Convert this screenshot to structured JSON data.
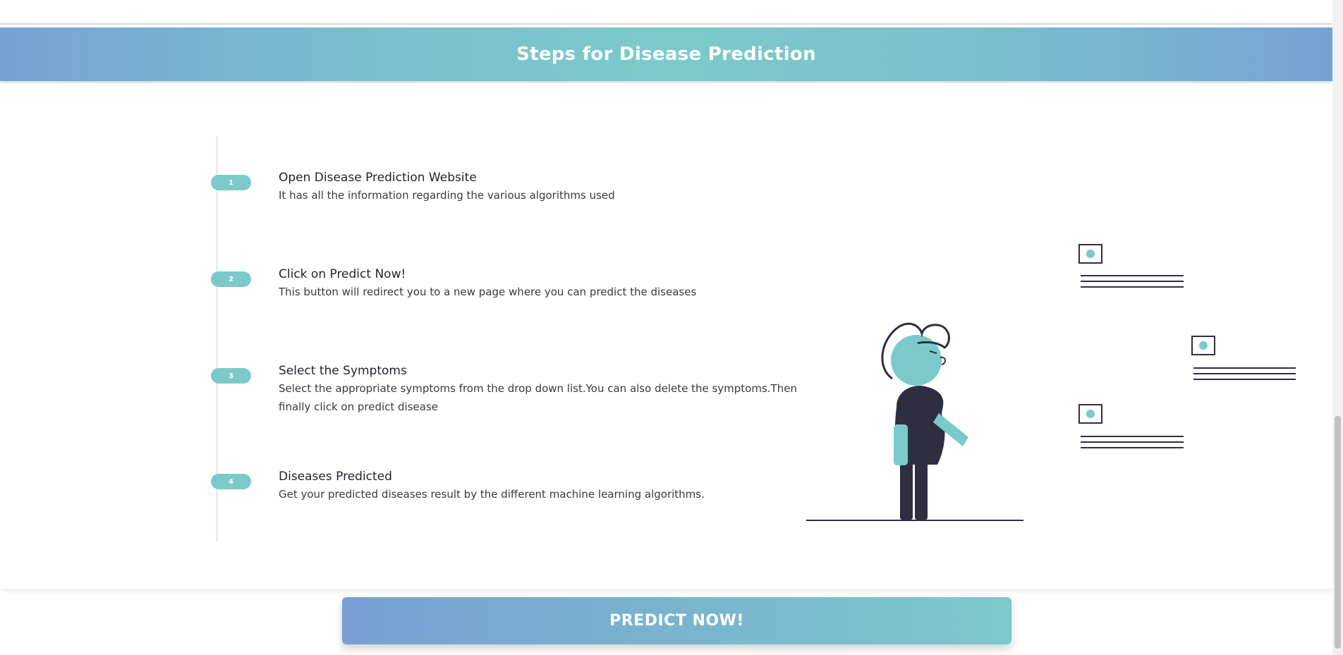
{
  "header": {
    "title": "Steps for Disease Prediction"
  },
  "steps": [
    {
      "number": "1",
      "title": "Open Disease Prediction Website",
      "description": "It has all the information regarding the various algorithms used"
    },
    {
      "number": "2",
      "title": "Click on Predict Now!",
      "description": "This button will redirect you to a new page where you can predict the diseases"
    },
    {
      "number": "3",
      "title": "Select the Symptoms",
      "description": "Select the appropriate symptoms from the drop down list.You can also delete the symptoms.Then finally click on predict disease"
    },
    {
      "number": "4",
      "title": "Diseases Predicted",
      "description": "Get your predicted diseases result by the different machine learning algorithms."
    }
  ],
  "cta": {
    "label": "PREDICT  NOW!"
  },
  "colors": {
    "accent": "#7bcacb",
    "gradient_start": "#77a2d4",
    "dark": "#2f2e41"
  },
  "icons": {
    "illustration": "person-looking-at-cards-illustration"
  }
}
